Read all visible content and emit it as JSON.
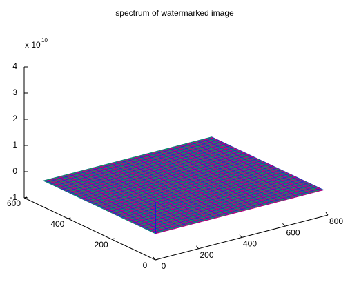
{
  "chart_data": {
    "type": "surface3d",
    "title": "spectrum of watermarked image",
    "zscale_label": {
      "base": "x 10",
      "exponent": "10"
    },
    "xlim": [
      0,
      800
    ],
    "xticks": [
      0,
      200,
      400,
      600,
      800
    ],
    "ylim": [
      0,
      600
    ],
    "yticks": [
      0,
      200,
      400,
      600
    ],
    "zlim": [
      -1,
      4
    ],
    "zticks": [
      -1,
      0,
      1,
      2,
      3,
      4
    ],
    "surface": {
      "x": [
        1,
        780
      ],
      "y": [
        1,
        512
      ],
      "z": 0,
      "colors": [
        "#c0007f",
        "#00a060",
        "#2030c0"
      ]
    },
    "peak": {
      "x": 1,
      "y": 1,
      "z": 1.2,
      "color": "#0000ff"
    }
  }
}
